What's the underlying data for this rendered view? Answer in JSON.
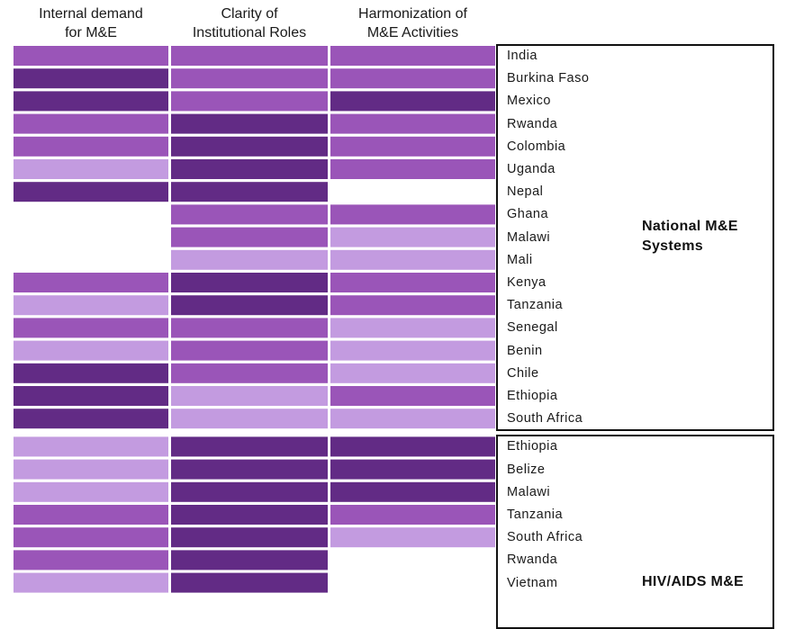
{
  "chart_data": {
    "type": "heatmap",
    "columns": [
      {
        "lines": [
          "Internal demand",
          "for M&E"
        ]
      },
      {
        "lines": [
          "Clarity of",
          "Institutional Roles"
        ]
      },
      {
        "lines": [
          "Harmonization of",
          "M&E Activities"
        ]
      }
    ],
    "levels": {
      "0": "",
      "1": "#c39be0",
      "2": "#9a55b8",
      "3": "#622b85"
    },
    "groups": [
      {
        "label_lines": [
          "National M&E",
          "Systems"
        ],
        "rows": [
          {
            "country": "India",
            "values": [
              2,
              2,
              2
            ]
          },
          {
            "country": "Burkina Faso",
            "values": [
              3,
              2,
              2
            ]
          },
          {
            "country": "Mexico",
            "values": [
              3,
              2,
              3
            ]
          },
          {
            "country": "Rwanda",
            "values": [
              2,
              3,
              2
            ]
          },
          {
            "country": "Colombia",
            "values": [
              2,
              3,
              2
            ]
          },
          {
            "country": "Uganda",
            "values": [
              1,
              3,
              2
            ]
          },
          {
            "country": "Nepal",
            "values": [
              3,
              3,
              0
            ]
          },
          {
            "country": "Ghana",
            "values": [
              0,
              2,
              2
            ]
          },
          {
            "country": "Malawi",
            "values": [
              0,
              2,
              1
            ]
          },
          {
            "country": "Mali",
            "values": [
              0,
              1,
              1
            ]
          },
          {
            "country": "Kenya",
            "values": [
              2,
              3,
              2
            ]
          },
          {
            "country": "Tanzania",
            "values": [
              1,
              3,
              2
            ]
          },
          {
            "country": "Senegal",
            "values": [
              2,
              2,
              1
            ]
          },
          {
            "country": "Benin",
            "values": [
              1,
              2,
              1
            ]
          },
          {
            "country": "Chile",
            "values": [
              3,
              2,
              1
            ]
          },
          {
            "country": "Ethiopia",
            "values": [
              3,
              1,
              2
            ]
          },
          {
            "country": "South Africa",
            "values": [
              3,
              1,
              1
            ]
          }
        ]
      },
      {
        "label_lines": [
          "HIV/AIDS M&E"
        ],
        "rows": [
          {
            "country": "Ethiopia",
            "values": [
              1,
              3,
              3
            ]
          },
          {
            "country": "Belize",
            "values": [
              1,
              3,
              3
            ]
          },
          {
            "country": "Malawi",
            "values": [
              1,
              3,
              3
            ]
          },
          {
            "country": "Tanzania",
            "values": [
              2,
              3,
              2
            ]
          },
          {
            "country": "South Africa",
            "values": [
              2,
              3,
              1
            ]
          },
          {
            "country": "Rwanda",
            "values": [
              2,
              3,
              0
            ]
          },
          {
            "country": "Vietnam",
            "values": [
              1,
              3,
              0
            ]
          }
        ]
      }
    ]
  }
}
